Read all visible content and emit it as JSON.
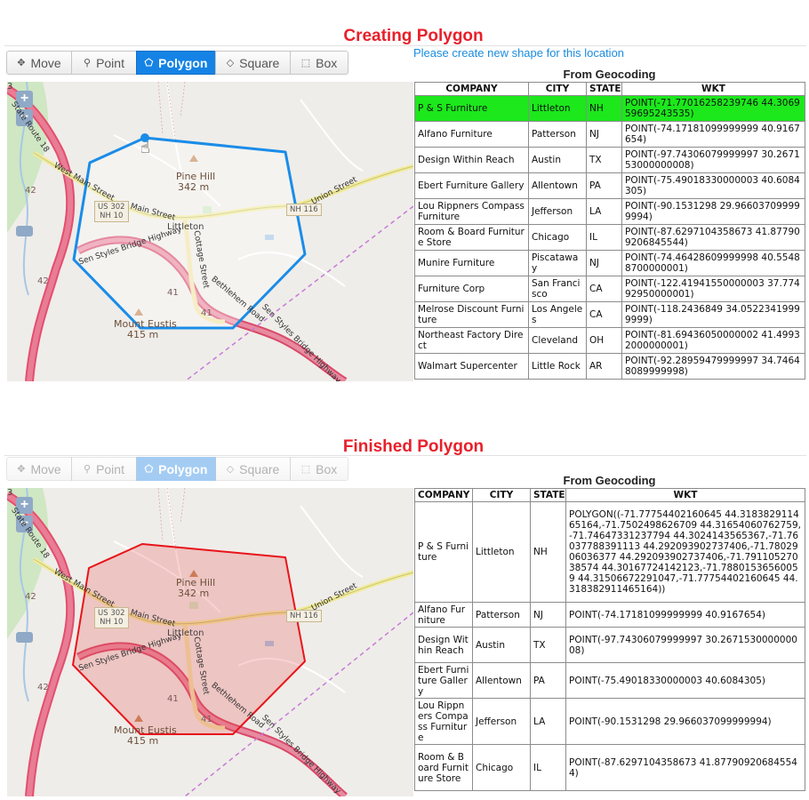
{
  "sections": [
    {
      "heading": "Creating Polygon",
      "message": "Please create new shape for this location",
      "tools": [
        {
          "label": "Move",
          "icon": "move-icon",
          "glyph": "✥"
        },
        {
          "label": "Point",
          "icon": "pin-icon",
          "glyph": "⚲"
        },
        {
          "label": "Polygon",
          "icon": "polygon-icon",
          "glyph": "⬠"
        },
        {
          "label": "Square",
          "icon": "square-icon",
          "glyph": "◇"
        },
        {
          "label": "Box",
          "icon": "box-icon",
          "glyph": "⬚"
        }
      ],
      "active_tool": "Polygon",
      "table_title": "From Geocoding",
      "columns": [
        "COMPANY",
        "CITY",
        "STATE",
        "WKT"
      ],
      "rows": [
        {
          "company": "P & S Furniture",
          "city": "Littleton",
          "state": "NH",
          "wkt": "POINT(-71.77016258239746 44.306959695243535)",
          "selected": true
        },
        {
          "company": "Alfano Furniture",
          "city": "Patterson",
          "state": "NJ",
          "wkt": "POINT(-74.17181099999999 40.9167654)"
        },
        {
          "company": "Design Within Reach",
          "city": "Austin",
          "state": "TX",
          "wkt": "POINT(-97.74306079999997 30.267153000000008)"
        },
        {
          "company": "Ebert Furniture Gallery",
          "city": "Allentown",
          "state": "PA",
          "wkt": "POINT(-75.49018330000003 40.6084305)"
        },
        {
          "company": "Lou Rippners Compass Furniture",
          "city": "Jefferson",
          "state": "LA",
          "wkt": "POINT(-90.1531298 29.966037099999994)"
        },
        {
          "company": "Room & Board Furniture Store",
          "city": "Chicago",
          "state": "IL",
          "wkt": "POINT(-87.6297104358673 41.877909206845544)"
        },
        {
          "company": "Munire Furniture",
          "city": "Piscataway",
          "state": "NJ",
          "wkt": "POINT(-74.46428609999998 40.55488700000001)"
        },
        {
          "company": "Furniture Corp",
          "city": "San Francisco",
          "state": "CA",
          "wkt": "POINT(-122.41941550000003 37.77492950000001)"
        },
        {
          "company": "Melrose Discount Furniture",
          "city": "Los Angeles",
          "state": "CA",
          "wkt": "POINT(-118.2436849 34.05223419999999)"
        },
        {
          "company": "Northeast Factory Direct",
          "city": "Cleveland",
          "state": "OH",
          "wkt": "POINT(-81.69436050000002 41.49932000000001)"
        },
        {
          "company": "Walmart Supercenter",
          "city": "Little Rock",
          "state": "AR",
          "wkt": "POINT(-92.28959479999997 34.74648089999998)"
        }
      ]
    },
    {
      "heading": "Finished Polygon",
      "tools": [
        {
          "label": "Move",
          "icon": "move-icon",
          "glyph": "✥"
        },
        {
          "label": "Point",
          "icon": "pin-icon",
          "glyph": "⚲"
        },
        {
          "label": "Polygon",
          "icon": "polygon-icon",
          "glyph": "⬠"
        },
        {
          "label": "Square",
          "icon": "square-icon",
          "glyph": "◇"
        },
        {
          "label": "Box",
          "icon": "box-icon",
          "glyph": "⬚"
        }
      ],
      "active_tool": "Polygon",
      "table_title": "From Geocoding",
      "columns": [
        "COMPANY",
        "CITY",
        "STATE",
        "WKT"
      ],
      "rows": [
        {
          "company": "P & S Furniture",
          "city": "Littleton",
          "state": "NH",
          "wkt": "POLYGON((-71.77754402160645 44.318382911465164,-71.7502498626709 44.31654060762759,-71.74647331237794 44.3024143565367,-71.76037788391113 44.292093902737406,-71.7802906036377 44.292093902737406,-71.79110527038574 44.30167724142123,-71.78801536560059 44.31506672291047,-71.77754402160645 44.318382911465164))"
        },
        {
          "company": "Alfano Furniture",
          "city": "Patterson",
          "state": "NJ",
          "wkt": "POINT(-74.17181099999999 40.9167654)"
        },
        {
          "company": "Design Within Reach",
          "city": "Austin",
          "state": "TX",
          "wkt": "POINT(-97.74306079999997 30.267153000000008)"
        },
        {
          "company": "Ebert Furniture Gallery",
          "city": "Allentown",
          "state": "PA",
          "wkt": "POINT(-75.49018330000003 40.6084305)"
        },
        {
          "company": "Lou Rippners Compass Furniture",
          "city": "Jefferson",
          "state": "LA",
          "wkt": "POINT(-90.1531298 29.966037099999994)"
        },
        {
          "company": "Room & Board Furniture Store",
          "city": "Chicago",
          "state": "IL",
          "wkt": "POINT(-87.6297104358673 41.877909206845544)"
        }
      ]
    }
  ],
  "map": {
    "zoom_in": "+",
    "zoom_out": "−",
    "route_number": "3",
    "labels": {
      "pine_hill": "Pine Hill",
      "pine_hill_elev": "342 m",
      "mount_eustis": "Mount Eustis",
      "mount_eustis_elev": "415 m",
      "littleton": "Littleton",
      "main_street": "Main Street",
      "west_main_street": "West Main Street",
      "union_street": "Union Street",
      "cottage_street": "Cottage Street",
      "bethlehem_road": "Bethlehem Road",
      "sen_styles": "Sen Styles Bridge Highway",
      "sen_styles_2": "Sen Styles Bridge Highway",
      "state_route": "State Route 18",
      "us302": "US 302",
      "nh10": "NH 10",
      "nh116": "NH 116",
      "r42": "42",
      "r41a": "41",
      "r41b": "41"
    }
  },
  "colors": {
    "heading": "#e8202a",
    "active_tool": "#1583e5",
    "selected_row": "#1ce81c",
    "drawing_polygon": "#1a8ce8",
    "finished_polygon": "#e8141b",
    "finished_fill": "#f1a0a0"
  }
}
